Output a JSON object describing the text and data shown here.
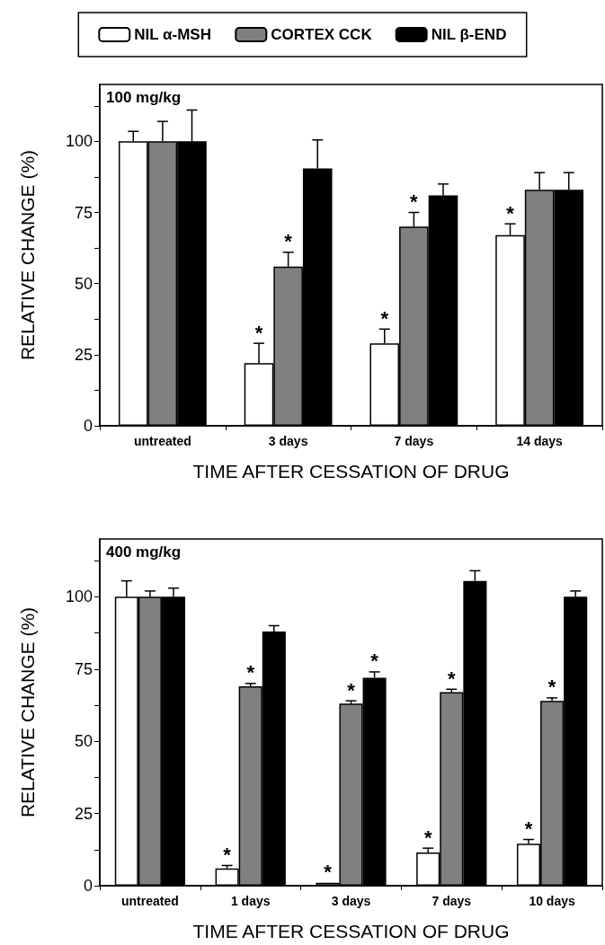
{
  "chart_data": [
    {
      "type": "bar",
      "annotations": [
        "100 mg/kg"
      ],
      "xlabel": "TIME AFTER CESSATION OF DRUG",
      "ylabel": "RELATIVE CHANGE (%)",
      "categories": [
        "untreated",
        "3 days",
        "7 days",
        "14 days"
      ],
      "series": [
        {
          "name": "NIL α-MSH",
          "color": "#ffffff",
          "values": [
            100,
            22,
            29,
            67
          ],
          "errors": [
            [
              100,
              103.5
            ],
            [
              22,
              29
            ],
            [
              29,
              34
            ],
            [
              67,
              71
            ]
          ],
          "value_labels": [
            null,
            "*",
            "*",
            "*"
          ]
        },
        {
          "name": "CORTEX CCK",
          "color": "#808080",
          "values": [
            100,
            56,
            70,
            83
          ],
          "errors": [
            [
              100,
              107
            ],
            [
              56,
              61
            ],
            [
              70,
              75
            ],
            [
              83,
              89
            ]
          ],
          "value_labels": [
            null,
            "*",
            "*",
            null
          ]
        },
        {
          "name": "NIL β-END",
          "color": "#000000",
          "values": [
            100,
            90.5,
            81,
            83
          ],
          "errors": [
            [
              100,
              111
            ],
            [
              90.5,
              100.5
            ],
            [
              81,
              85
            ],
            [
              83,
              89
            ]
          ]
        }
      ],
      "ylim": [
        0,
        120
      ],
      "yticks": [
        0,
        {
          "value": 12.5,
          "label": null
        },
        25,
        {
          "value": 37.5,
          "label": null
        },
        50,
        {
          "value": 62.5,
          "label": null
        },
        75,
        {
          "value": 87.5,
          "label": null
        },
        100,
        {
          "value": 112.5,
          "label": null
        }
      ],
      "legend": "top",
      "grid": false
    },
    {
      "type": "bar",
      "annotations": [
        "400 mg/kg"
      ],
      "xlabel": "TIME AFTER CESSATION OF DRUG",
      "ylabel": "RELATIVE CHANGE (%)",
      "categories": [
        "untreated",
        "1 days",
        "3 days",
        "7 days",
        "10 days"
      ],
      "series": [
        {
          "color": "#ffffff",
          "values": [
            100,
            6,
            1,
            11.5,
            14.5
          ],
          "errors": [
            [
              100,
              105.5
            ],
            [
              6,
              7
            ],
            null,
            [
              11.5,
              13
            ],
            [
              14.5,
              16
            ]
          ],
          "value_labels": [
            null,
            "*",
            "*",
            "*",
            "*"
          ]
        },
        {
          "color": "#808080",
          "values": [
            100,
            69,
            63,
            67,
            64
          ],
          "errors": [
            [
              100,
              102
            ],
            [
              69,
              70
            ],
            [
              63,
              64
            ],
            [
              67,
              68
            ],
            [
              64,
              65
            ]
          ],
          "value_labels": [
            null,
            "*",
            "*",
            "*",
            "*"
          ]
        },
        {
          "color": "#000000",
          "values": [
            100,
            88,
            72,
            105.5,
            100
          ],
          "errors": [
            [
              100,
              103
            ],
            [
              88,
              90
            ],
            [
              72,
              74
            ],
            [
              105.5,
              109
            ],
            [
              100,
              102
            ]
          ],
          "value_labels": [
            null,
            null,
            "*",
            null,
            null
          ]
        }
      ],
      "ylim": [
        0,
        120
      ],
      "yticks": [
        0,
        {
          "value": 12.5,
          "label": null
        },
        25,
        {
          "value": 37.5,
          "label": null
        },
        50,
        {
          "value": 62.5,
          "label": null
        },
        75,
        {
          "value": 87.5,
          "label": null
        },
        100,
        {
          "value": 112.5,
          "label": null
        }
      ],
      "legend": false,
      "grid": false
    }
  ]
}
